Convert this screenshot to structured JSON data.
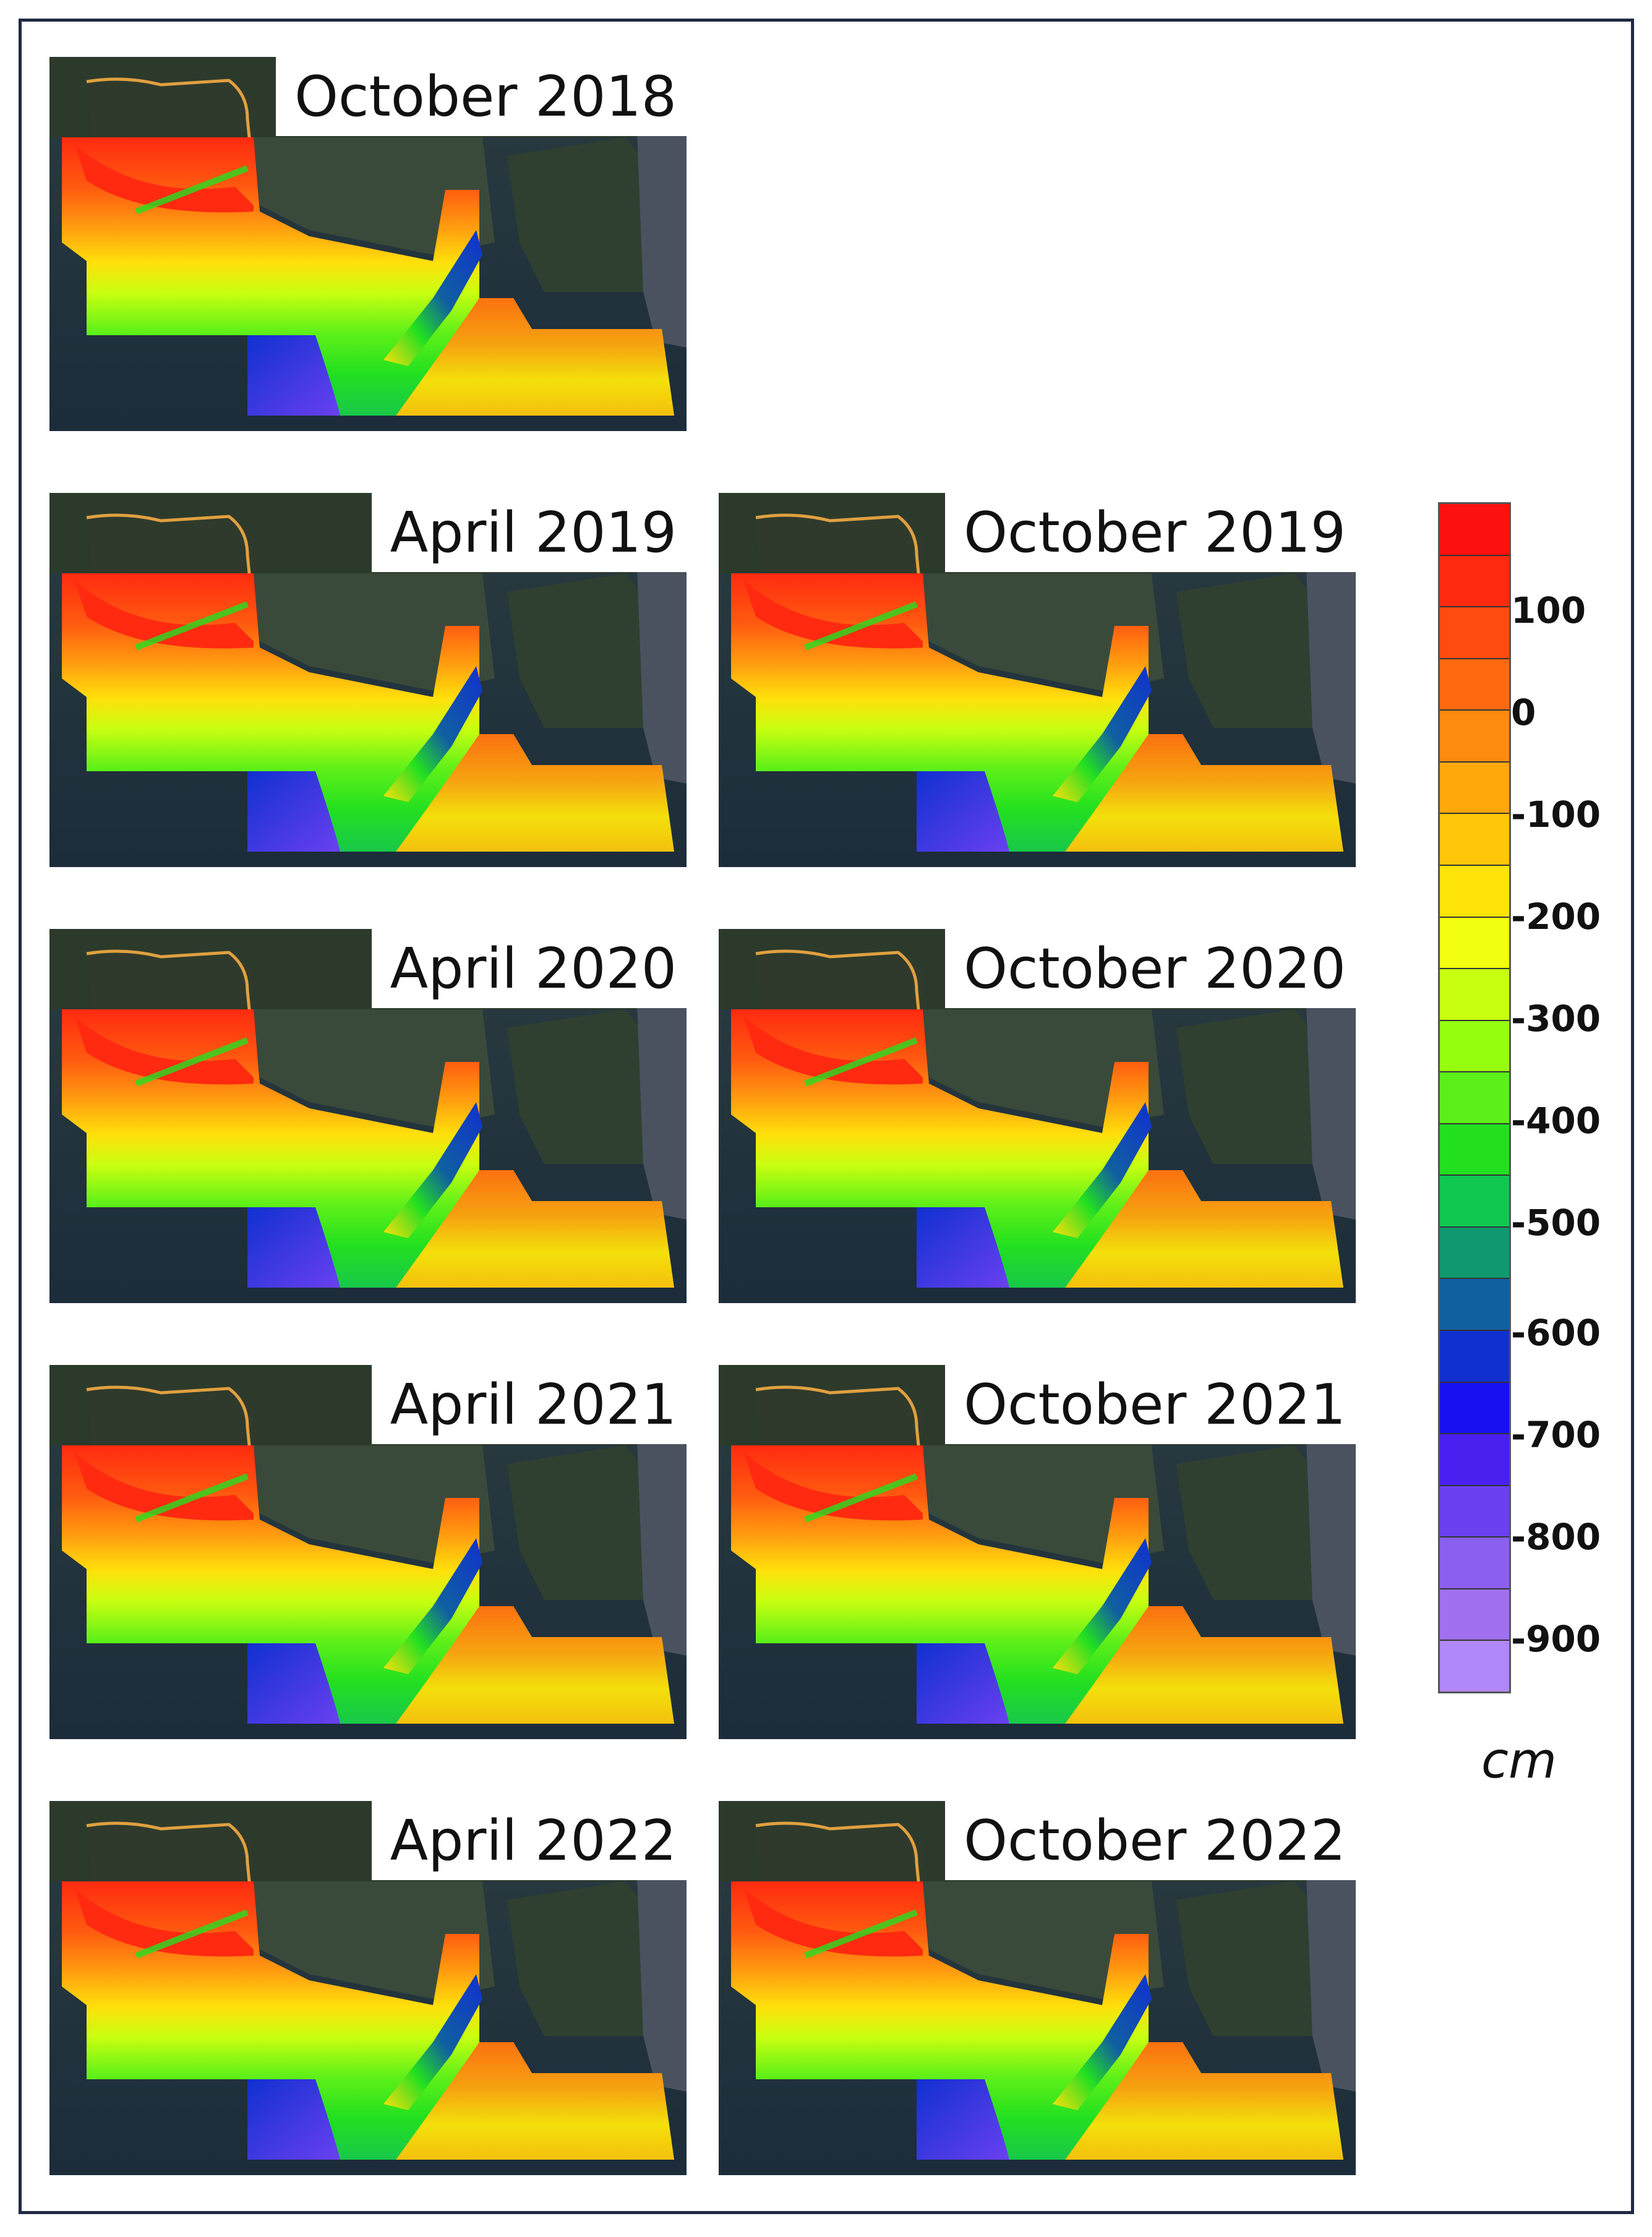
{
  "panels": [
    {
      "label": "October 2018"
    },
    {
      "label": "April 2019"
    },
    {
      "label": "October 2019"
    },
    {
      "label": "April 2020"
    },
    {
      "label": "October 2020"
    },
    {
      "label": "April 2021"
    },
    {
      "label": "October 2021"
    },
    {
      "label": "April 2022"
    },
    {
      "label": "October 2022"
    }
  ],
  "colorbar": {
    "unit": "cm",
    "ticks": [
      "100",
      "0",
      "-100",
      "-200",
      "-300",
      "-400",
      "-500",
      "-600",
      "-700",
      "-800",
      "-900"
    ],
    "colors": [
      "#ff1010",
      "#ff2a10",
      "#ff4a10",
      "#ff6a10",
      "#ff8a10",
      "#ffa80c",
      "#ffc60a",
      "#ffe40a",
      "#f2ff10",
      "#c8ff10",
      "#96ff10",
      "#5cf018",
      "#22e020",
      "#10c850",
      "#109870",
      "#1060a0",
      "#1030d0",
      "#1810f0",
      "#4a20f0",
      "#6a40f0",
      "#8a60f0",
      "#a070f0",
      "#b088f8"
    ]
  }
}
